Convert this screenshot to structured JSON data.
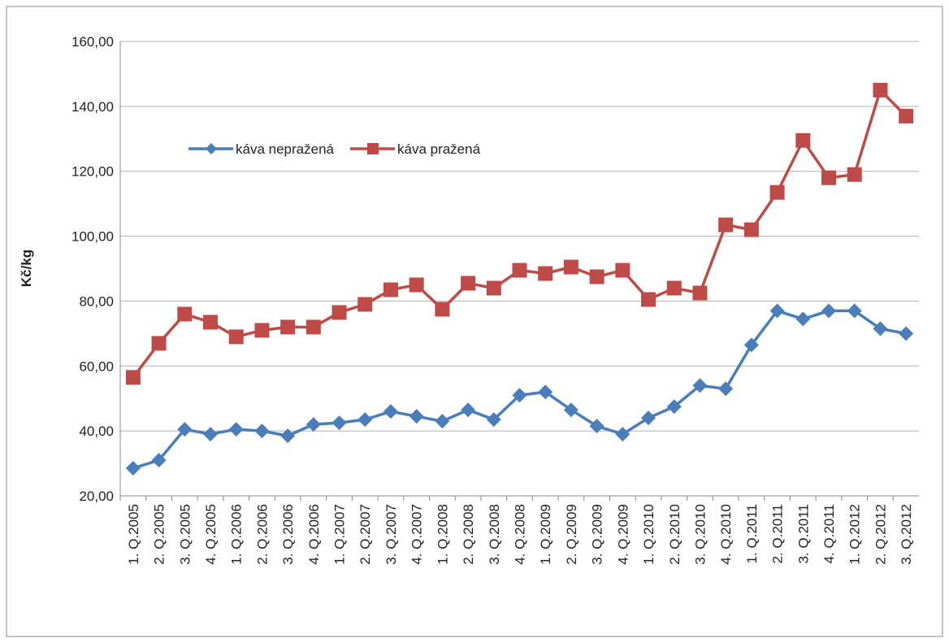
{
  "chart_data": {
    "type": "line",
    "ylabel": "Kč/kg",
    "categories": [
      "1. Q.2005",
      "2. Q.2005",
      "3. Q.2005",
      "4. Q.2005",
      "1. Q.2006",
      "2. Q.2006",
      "3. Q.2006",
      "4. Q.2006",
      "1. Q.2007",
      "2. Q.2007",
      "3. Q.2007",
      "4. Q.2007",
      "1. Q.2008",
      "2. Q.2008",
      "3. Q.2008",
      "4. Q.2008",
      "1. Q.2009",
      "2. Q.2009",
      "3. Q.2009",
      "4. Q.2009",
      "1. Q.2010",
      "2. Q.2010",
      "3. Q.2010",
      "4. Q.2010",
      "1. Q.2011",
      "2. Q.2011",
      "3. Q.2011",
      "4. Q.2011",
      "1. Q.2012",
      "2. Q.2012",
      "3. Q.2012"
    ],
    "series": [
      {
        "name": "káva nepražená",
        "color": "#4a7ebb",
        "marker": "diamond",
        "values": [
          28.5,
          31,
          40.5,
          39,
          40.5,
          40,
          38.5,
          42,
          42.5,
          43.5,
          46,
          44.5,
          43,
          46.5,
          43.5,
          51,
          52,
          46.5,
          41.5,
          39,
          44,
          47.5,
          54,
          53,
          66.5,
          77,
          74.5,
          77,
          77,
          71.5,
          70
        ]
      },
      {
        "name": "káva pražená",
        "color": "#be4b48",
        "marker": "square",
        "values": [
          56.5,
          67,
          76,
          73.5,
          69,
          71,
          72,
          72,
          76.5,
          79,
          83.5,
          85,
          77.5,
          85.5,
          84,
          89.5,
          88.5,
          90.5,
          87.5,
          89.5,
          80.5,
          84,
          82.5,
          103.5,
          102,
          113.5,
          129.5,
          118,
          119,
          145,
          137
        ]
      }
    ],
    "ylim": [
      20,
      160
    ],
    "yticks": [
      {
        "value": 20,
        "label": "20,00"
      },
      {
        "value": 40,
        "label": "40,00"
      },
      {
        "value": 60,
        "label": "60,00"
      },
      {
        "value": 80,
        "label": "80,00"
      },
      {
        "value": 100,
        "label": "100,00"
      },
      {
        "value": 120,
        "label": "120,00"
      },
      {
        "value": 140,
        "label": "140,00"
      },
      {
        "value": 160,
        "label": "160,00"
      }
    ],
    "grid": true,
    "legend": "top-left"
  }
}
